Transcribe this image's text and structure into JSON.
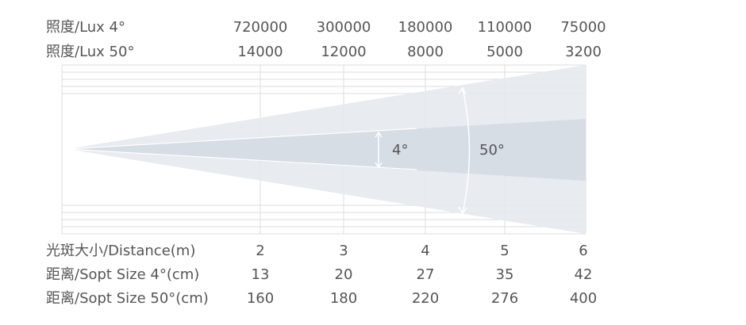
{
  "rows_top": [
    {
      "label": "照度/Lux 4°",
      "values": [
        720000,
        300000,
        180000,
        110000,
        75000
      ]
    },
    {
      "label": "照度/Lux 50°",
      "values": [
        14000,
        12000,
        8000,
        5000,
        3200
      ]
    }
  ],
  "beam_labels": {
    "narrow": "4°",
    "wide": "50°"
  },
  "rows_bottom": [
    {
      "label": "光斑大小/Distance(m)",
      "values": [
        2,
        3,
        4,
        5,
        6
      ]
    },
    {
      "label": "距离/Sopt Size 4°(cm)",
      "values": [
        13,
        20,
        27,
        35,
        42
      ]
    },
    {
      "label": "距离/Sopt Size 50°(cm)",
      "values": [
        160,
        180,
        220,
        276,
        400
      ]
    }
  ]
}
